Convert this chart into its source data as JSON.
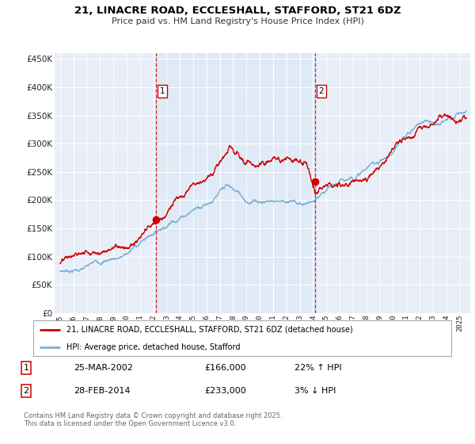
{
  "title": "21, LINACRE ROAD, ECCLESHALL, STAFFORD, ST21 6DZ",
  "subtitle": "Price paid vs. HM Land Registry's House Price Index (HPI)",
  "legend_line1": "21, LINACRE ROAD, ECCLESHALL, STAFFORD, ST21 6DZ (detached house)",
  "legend_line2": "HPI: Average price, detached house, Stafford",
  "footer": "Contains HM Land Registry data © Crown copyright and database right 2025.\nThis data is licensed under the Open Government Licence v3.0.",
  "red_color": "#cc0000",
  "blue_color": "#7ab0d4",
  "shade_color": "#d8e8f5",
  "grid_color": "#d0d8e8",
  "bg_color": "#e8eef8",
  "marker1_date": 2002.23,
  "marker2_date": 2014.17,
  "marker1_value": 166000,
  "marker2_value": 233000,
  "ylim": [
    0,
    460000
  ],
  "xlim_start": 1994.6,
  "xlim_end": 2025.8,
  "yticks": [
    0,
    50000,
    100000,
    150000,
    200000,
    250000,
    300000,
    350000,
    400000,
    450000
  ]
}
